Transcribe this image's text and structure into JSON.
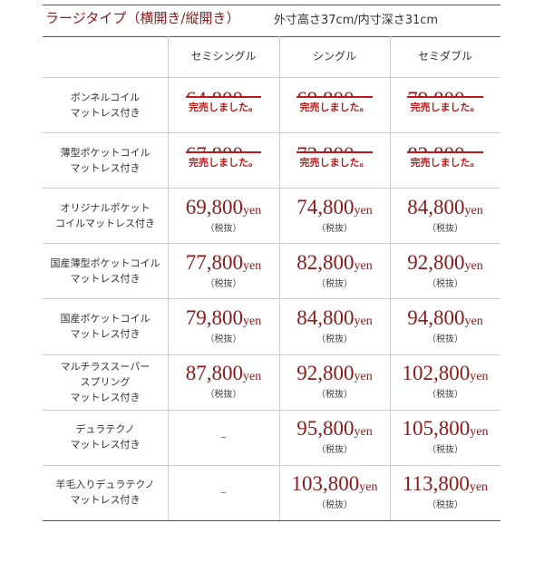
{
  "header": {
    "title": "ラージタイプ（横開き/縦開き）",
    "subtitle": "外寸高さ37cm/内寸深さ31cm"
  },
  "table": {
    "columns": [
      "セミシングル",
      "シングル",
      "セミダブル"
    ],
    "unit": "yen",
    "tax_note": "（税抜）",
    "sold_label": "完売しました。",
    "rows": [
      {
        "label": [
          "ボンネルコイル",
          "マットレス付き"
        ],
        "cells": [
          {
            "price": "64,800",
            "sold": true
          },
          {
            "price": "69,800",
            "sold": true
          },
          {
            "price": "79,800",
            "sold": true
          }
        ]
      },
      {
        "label": [
          "薄型ポケットコイル",
          "マットレス付き"
        ],
        "cells": [
          {
            "price": "67,800",
            "sold": true
          },
          {
            "price": "72,800",
            "sold": true
          },
          {
            "price": "82,800",
            "sold": true
          }
        ]
      },
      {
        "label": [
          "オリジナルポケット",
          "コイルマットレス付き"
        ],
        "cells": [
          {
            "price": "69,800"
          },
          {
            "price": "74,800"
          },
          {
            "price": "84,800"
          }
        ]
      },
      {
        "label": [
          "国産薄型ポケットコイル",
          "マットレス付き"
        ],
        "cells": [
          {
            "price": "77,800"
          },
          {
            "price": "82,800"
          },
          {
            "price": "92,800"
          }
        ]
      },
      {
        "label": [
          "国産ポケットコイル",
          "マットレス付き"
        ],
        "cells": [
          {
            "price": "79,800"
          },
          {
            "price": "84,800"
          },
          {
            "price": "94,800"
          }
        ]
      },
      {
        "label": [
          "マルチラススーパー",
          "スプリング",
          "マットレス付き"
        ],
        "cells": [
          {
            "price": "87,800"
          },
          {
            "price": "92,800"
          },
          {
            "price": "102,800"
          }
        ]
      },
      {
        "label": [
          "デュラテクノ",
          "マットレス付き"
        ],
        "cells": [
          {
            "text": "–"
          },
          {
            "price": "95,800"
          },
          {
            "price": "105,800"
          }
        ]
      },
      {
        "label": [
          "羊毛入りデュラテクノ",
          "マットレス付き"
        ],
        "cells": [
          {
            "text": "–"
          },
          {
            "price": "103,800"
          },
          {
            "price": "113,800"
          }
        ]
      }
    ]
  }
}
